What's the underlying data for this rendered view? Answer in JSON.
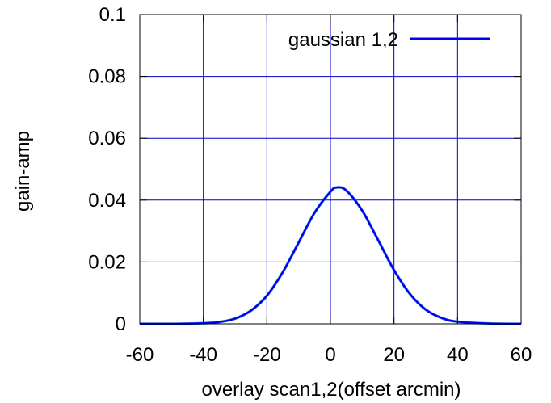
{
  "chart_data": {
    "type": "line",
    "title": "",
    "xlabel": "overlay scan1,2(offset arcmin)",
    "ylabel": "gain-amp",
    "xlim": [
      -60,
      60
    ],
    "ylim": [
      0,
      0.1
    ],
    "xticks": [
      -60,
      -40,
      -20,
      0,
      20,
      40,
      60
    ],
    "xtick_labels": [
      "-60",
      "-40",
      "-20",
      "0",
      "20",
      "40",
      "60"
    ],
    "yticks": [
      0,
      0.02,
      0.04,
      0.06,
      0.08,
      0.1
    ],
    "ytick_labels": [
      "0",
      "0.02",
      "0.04",
      "0.06",
      "0.08",
      "0.1"
    ],
    "grid": true,
    "legend_position": "top-right",
    "series": [
      {
        "name": "gaussian 1,2",
        "color": "#0000ff",
        "x": [
          -60,
          -50,
          -40,
          -35,
          -30,
          -25,
          -20,
          -15,
          -10,
          -5,
          0,
          2,
          5,
          10,
          15,
          20,
          25,
          30,
          35,
          40,
          50,
          60
        ],
        "y": [
          0.0,
          0.0,
          0.0002,
          0.0006,
          0.0017,
          0.0043,
          0.0091,
          0.0167,
          0.0263,
          0.0359,
          0.0427,
          0.0441,
          0.0431,
          0.0366,
          0.0271,
          0.0174,
          0.0097,
          0.0046,
          0.0019,
          0.0007,
          0.0001,
          0.0
        ]
      }
    ]
  }
}
